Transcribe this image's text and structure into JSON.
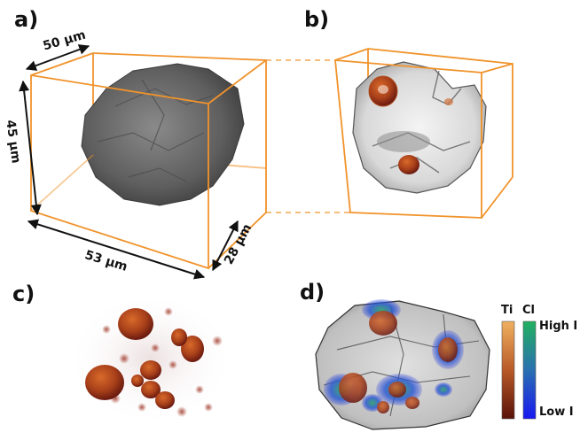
{
  "panels": {
    "a": {
      "label": "a)"
    },
    "b": {
      "label": "b)"
    },
    "c": {
      "label": "c)"
    },
    "d": {
      "label": "d)"
    }
  },
  "dimensions": {
    "depth": "50 μm",
    "height": "45 μm",
    "width": "53 μm",
    "thickness": "28 μm"
  },
  "colorbar": {
    "ti_label": "Ti",
    "cl_label": "Cl",
    "high_label": "High I",
    "low_label": "Low I"
  },
  "colors": {
    "box_orange": "#f0932b",
    "particle_gray": "#6b6b6b",
    "ti_high": "#e8a050",
    "ti_low": "#6a1a10",
    "cl_high": "#2aa070",
    "cl_low": "#2030e0"
  }
}
